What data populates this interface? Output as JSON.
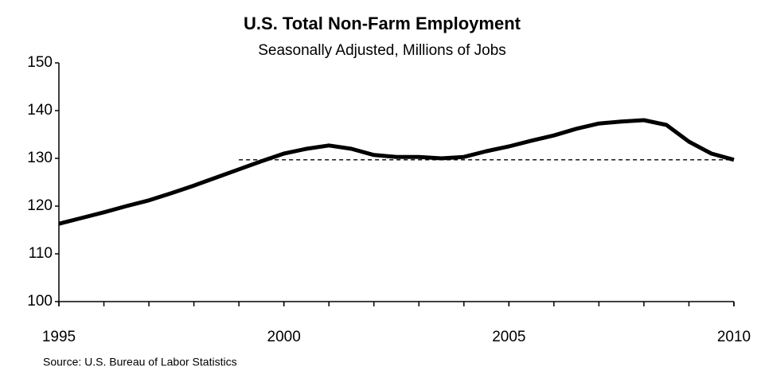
{
  "chart_data": {
    "type": "line",
    "title": "U.S. Total Non-Farm Employment",
    "subtitle": "Seasonally Adjusted, Millions of Jobs",
    "source": "Source: U.S. Bureau of Labor Statistics",
    "x": [
      1995,
      1995.5,
      1996,
      1996.5,
      1997,
      1997.5,
      1998,
      1998.5,
      1999,
      1999.5,
      2000,
      2000.5,
      2001,
      2001.5,
      2002,
      2002.5,
      2003,
      2003.5,
      2004,
      2004.5,
      2005,
      2005.5,
      2006,
      2006.5,
      2007,
      2007.5,
      2008,
      2008.5,
      2009,
      2009.5,
      2010
    ],
    "series": [
      {
        "name": "Total Non-Farm Employment",
        "color": "#000000",
        "values": [
          116.3,
          117.5,
          118.7,
          120.0,
          121.2,
          122.7,
          124.3,
          126.0,
          127.7,
          129.4,
          131.0,
          132.0,
          132.7,
          132.0,
          130.7,
          130.3,
          130.3,
          130.0,
          130.3,
          131.5,
          132.5,
          133.7,
          134.8,
          136.2,
          137.3,
          137.7,
          138.0,
          137.0,
          133.5,
          131.0,
          129.7
        ]
      }
    ],
    "reference_line": {
      "value": 129.7,
      "from": 1999,
      "to": 2010,
      "color": "#000000"
    },
    "xlim": [
      1995,
      2010
    ],
    "xticks": [
      1995,
      2000,
      2005,
      2010
    ],
    "xminor_step": 1,
    "ylim": [
      100,
      150
    ],
    "yticks": [
      100,
      110,
      120,
      130,
      140,
      150
    ]
  }
}
